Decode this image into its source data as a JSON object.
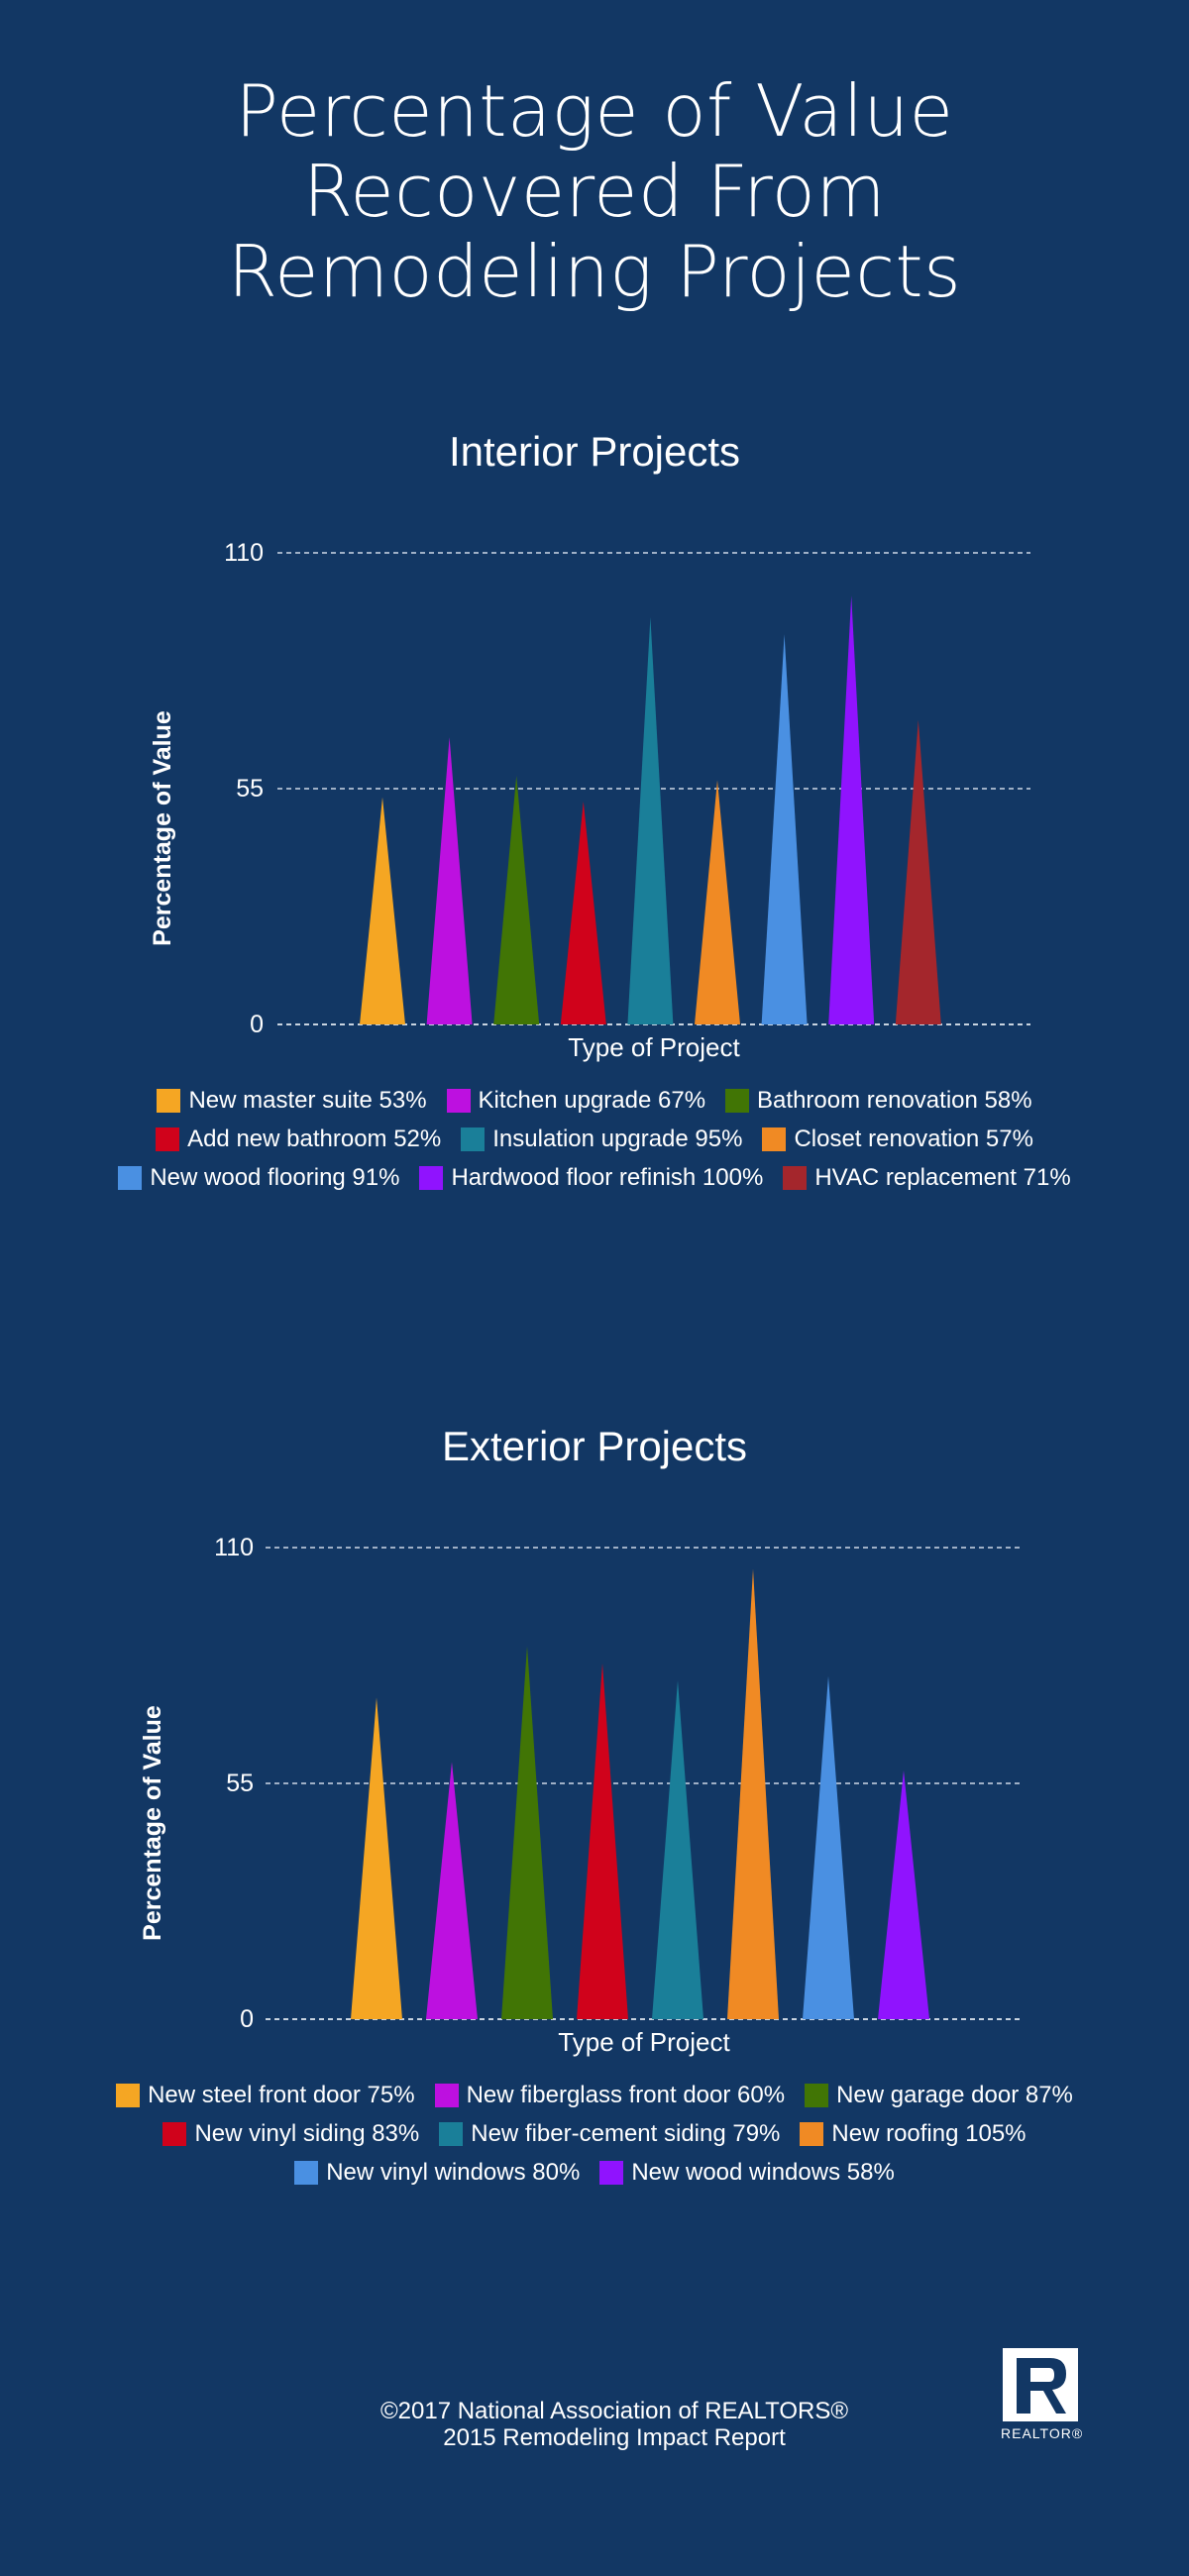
{
  "title_lines": [
    "Percentage of Value",
    "Recovered From",
    "Remodeling Projects"
  ],
  "chart_data": [
    {
      "type": "bar",
      "title": "Interior Projects",
      "xlabel": "Type of Project",
      "ylabel": "Percentage of Value",
      "ylim": [
        0,
        110
      ],
      "yticks": [
        0,
        55,
        110
      ],
      "grid": true,
      "legend_position": "bottom",
      "bar_shape": "triangle",
      "categories": [
        "New master suite 53%",
        "Kitchen upgrade 67%",
        "Bathroom renovation 58%",
        "Add new bathroom 52%",
        "Insulation upgrade 95%",
        "Closet renovation 57%",
        "New wood flooring 91%",
        "Hardwood floor refinish 100%",
        "HVAC replacement 71%"
      ],
      "values": [
        53,
        67,
        58,
        52,
        95,
        57,
        91,
        100,
        71
      ],
      "colors": [
        "#f5a623",
        "#bd10e0",
        "#417505",
        "#d0021b",
        "#1a7f99",
        "#f08a24",
        "#4a90e2",
        "#9013fe",
        "#a4262c"
      ]
    },
    {
      "type": "bar",
      "title": "Exterior Projects",
      "xlabel": "Type of Project",
      "ylabel": "Percentage of Value",
      "ylim": [
        0,
        110
      ],
      "yticks": [
        0,
        55,
        110
      ],
      "grid": true,
      "legend_position": "bottom",
      "bar_shape": "triangle",
      "categories": [
        "New steel front door 75%",
        "New fiberglass front door 60%",
        "New garage door 87%",
        "New vinyl siding 83%",
        "New fiber-cement siding 79%",
        "New roofing 105%",
        "New vinyl windows 80%",
        "New wood windows 58%"
      ],
      "values": [
        75,
        60,
        87,
        83,
        79,
        105,
        80,
        58
      ],
      "colors": [
        "#f5a623",
        "#bd10e0",
        "#417505",
        "#d0021b",
        "#1a7f99",
        "#f08a24",
        "#4a90e2",
        "#9013fe"
      ]
    }
  ],
  "footer": {
    "line1": "©2017 National Association of REALTORS®",
    "line2": "2015 Remodeling Impact Report"
  },
  "logo": {
    "name": "realtor-r-icon",
    "word": "REALTOR®"
  }
}
